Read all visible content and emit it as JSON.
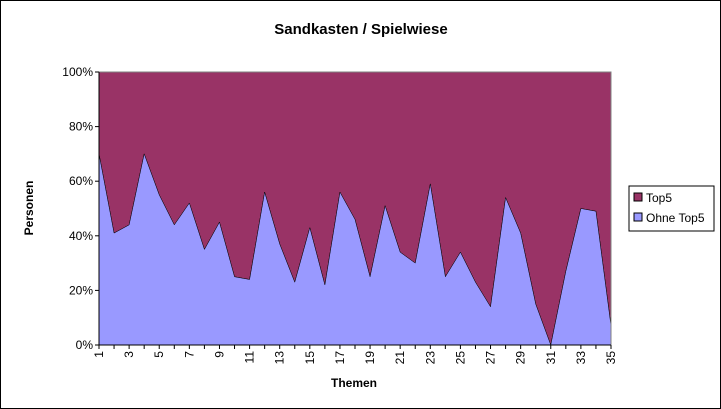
{
  "chart_data": {
    "type": "area",
    "stacked": "percent",
    "title": "Sandkasten / Spielwiese",
    "xlabel": "Themen",
    "ylabel": "Personen",
    "ylim": [
      0,
      100
    ],
    "y_ticks": [
      "0%",
      "20%",
      "40%",
      "60%",
      "80%",
      "100%"
    ],
    "x": [
      1,
      2,
      3,
      4,
      5,
      6,
      7,
      8,
      9,
      10,
      11,
      12,
      13,
      14,
      15,
      16,
      17,
      18,
      19,
      20,
      21,
      22,
      23,
      24,
      25,
      26,
      27,
      28,
      29,
      30,
      31,
      32,
      33,
      34,
      35
    ],
    "x_tick_labels": [
      "1",
      "3",
      "5",
      "7",
      "9",
      "11",
      "13",
      "15",
      "17",
      "19",
      "21",
      "23",
      "25",
      "27",
      "29",
      "31",
      "33",
      "35"
    ],
    "series": [
      {
        "name": "Ohne Top5",
        "color": "#9999ff",
        "values": [
          70,
          41,
          44,
          70,
          55,
          44,
          52,
          35,
          45,
          25,
          24,
          56,
          37,
          23,
          43,
          22,
          56,
          46,
          25,
          51,
          34,
          30,
          59,
          25,
          34,
          23,
          14,
          54,
          41,
          15,
          0,
          27,
          50,
          49,
          7
        ]
      },
      {
        "name": "Top5",
        "color": "#993366",
        "values": [
          30,
          59,
          56,
          30,
          45,
          56,
          48,
          65,
          55,
          75,
          76,
          44,
          63,
          77,
          57,
          78,
          44,
          54,
          75,
          49,
          66,
          70,
          41,
          75,
          66,
          77,
          86,
          46,
          59,
          85,
          100,
          73,
          50,
          51,
          93
        ]
      }
    ],
    "grid": false,
    "legend": "right"
  },
  "colors": {
    "background": "#ffffff",
    "plot_area_background": "#c0c0c0",
    "axis": "#000000"
  }
}
